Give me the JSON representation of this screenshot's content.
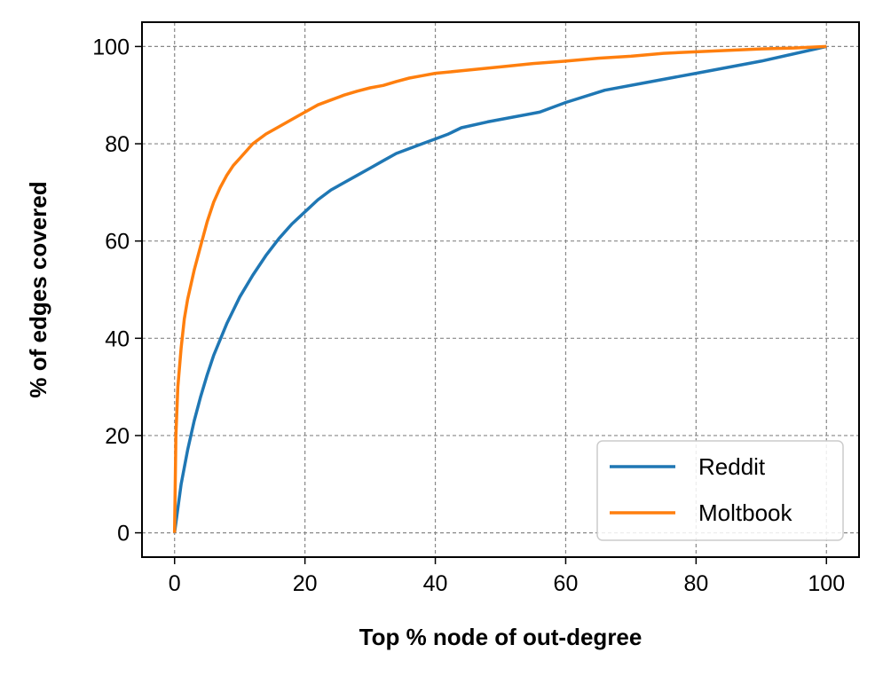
{
  "chart_data": {
    "type": "line",
    "xlabel": "Top % node of out-degree",
    "ylabel": "% of edges covered",
    "xlim": [
      -5,
      105
    ],
    "ylim": [
      -5,
      105
    ],
    "xticks": [
      0,
      20,
      40,
      60,
      80,
      100
    ],
    "yticks": [
      0,
      20,
      40,
      60,
      80,
      100
    ],
    "grid": true,
    "legend_position": "bottom-right",
    "series": [
      {
        "name": "Reddit",
        "color": "#1f77b4",
        "x": [
          0,
          0.5,
          1,
          2,
          3,
          4,
          5,
          6,
          8,
          10,
          12,
          14,
          16,
          18,
          20,
          22,
          24,
          26,
          28,
          30,
          32,
          34,
          36,
          38,
          40,
          42,
          44,
          48,
          52,
          56,
          60,
          66,
          72,
          80,
          90,
          100
        ],
        "y": [
          0,
          5,
          10,
          17,
          23,
          28,
          32.5,
          36.5,
          43,
          48.5,
          53,
          57,
          60.5,
          63.5,
          66,
          68.5,
          70.5,
          72,
          73.5,
          75,
          76.5,
          78,
          79,
          80,
          81,
          82,
          83.3,
          84.5,
          85.5,
          86.5,
          88.5,
          91,
          92.5,
          94.5,
          97,
          100
        ]
      },
      {
        "name": "Moltbook",
        "color": "#ff7f0e",
        "x": [
          0,
          0.2,
          0.5,
          1,
          1.5,
          2,
          3,
          4,
          5,
          6,
          7,
          8,
          9,
          10,
          12,
          14,
          16,
          18,
          20,
          22,
          24,
          26,
          28,
          30,
          32,
          34,
          36,
          38,
          40,
          44,
          50,
          55,
          60,
          65,
          70,
          75,
          80,
          85,
          90,
          95,
          100
        ],
        "y": [
          0,
          20,
          30,
          38,
          44,
          48,
          54,
          59,
          64,
          68,
          71,
          73.5,
          75.5,
          77,
          80,
          82,
          83.5,
          85,
          86.5,
          88,
          89,
          90,
          90.8,
          91.5,
          92,
          92.8,
          93.5,
          94,
          94.5,
          95,
          95.8,
          96.5,
          97,
          97.6,
          98,
          98.6,
          98.9,
          99.2,
          99.5,
          99.7,
          100
        ]
      }
    ]
  }
}
